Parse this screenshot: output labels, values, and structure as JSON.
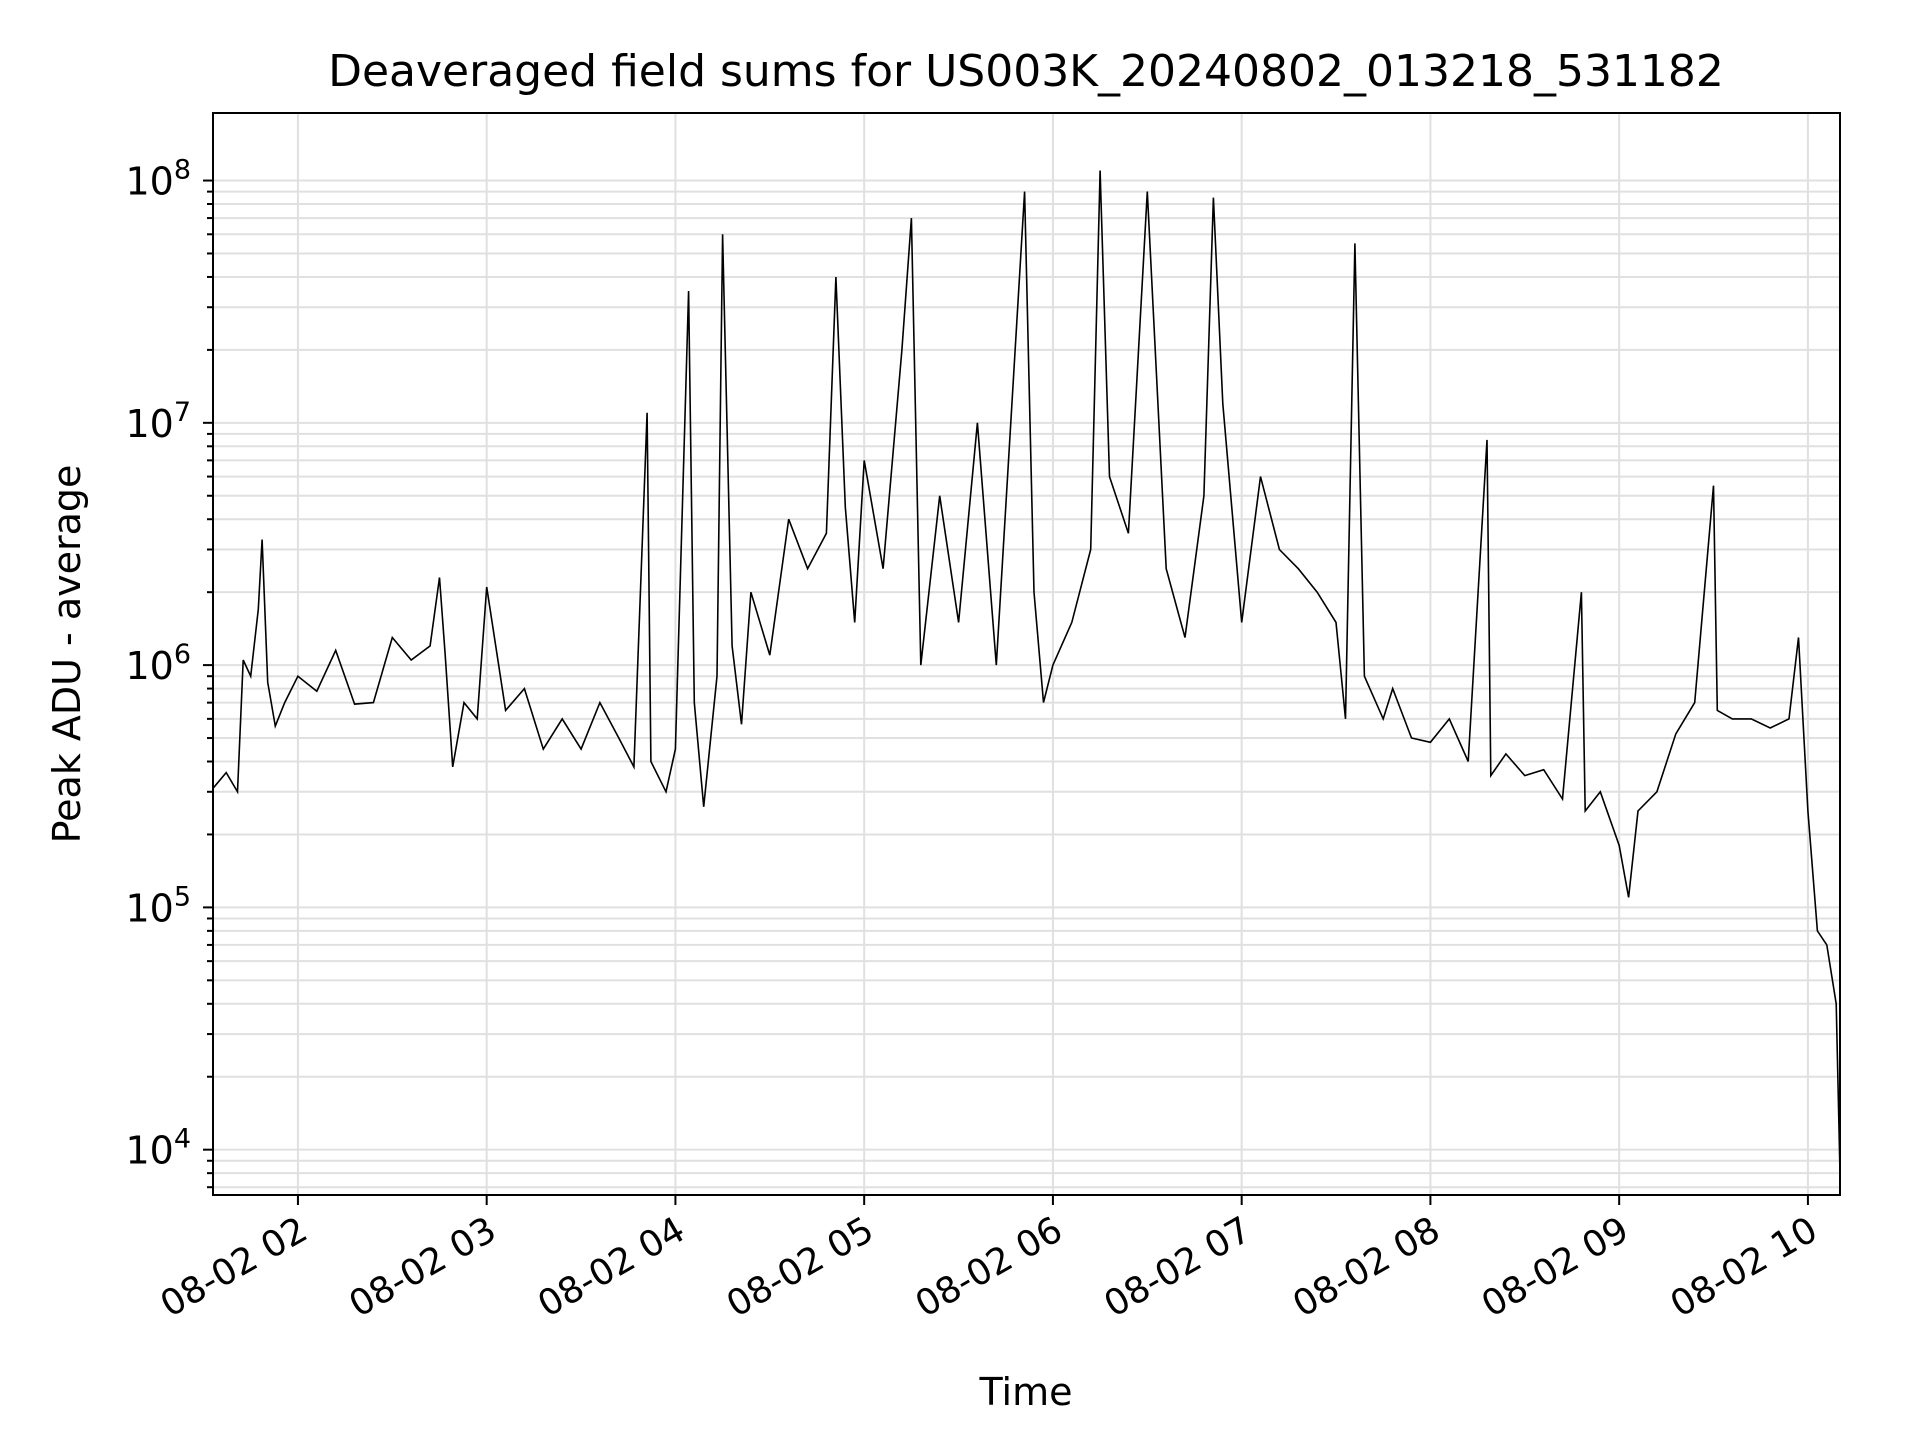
{
  "chart_data": {
    "type": "line",
    "title": "Deaveraged field sums for US003K_20240802_013218_531182",
    "xlabel": "Time",
    "ylabel": "Peak ADU - average",
    "x_unit": "hours",
    "xlim": [
      1.55,
      10.17
    ],
    "ylim": [
      6500,
      190000000
    ],
    "yscale": "log",
    "grid": true,
    "line_color": "#000000",
    "grid_color": "#e0e0e0",
    "xticks": [
      {
        "value": 2,
        "label": "08-02 02"
      },
      {
        "value": 3,
        "label": "08-02 03"
      },
      {
        "value": 4,
        "label": "08-02 04"
      },
      {
        "value": 5,
        "label": "08-02 05"
      },
      {
        "value": 6,
        "label": "08-02 06"
      },
      {
        "value": 7,
        "label": "08-02 07"
      },
      {
        "value": 8,
        "label": "08-02 08"
      },
      {
        "value": 9,
        "label": "08-02 09"
      },
      {
        "value": 10,
        "label": "08-02 10"
      }
    ],
    "yticks": [
      {
        "value": 10000,
        "base": "10",
        "exp": "4"
      },
      {
        "value": 100000,
        "base": "10",
        "exp": "5"
      },
      {
        "value": 1000000,
        "base": "10",
        "exp": "6"
      },
      {
        "value": 10000000,
        "base": "10",
        "exp": "7"
      },
      {
        "value": 100000000,
        "base": "10",
        "exp": "8"
      }
    ],
    "series": [
      {
        "values": [
          [
            1.55,
            310000
          ],
          [
            1.62,
            360000
          ],
          [
            1.68,
            300000
          ],
          [
            1.71,
            1050000
          ],
          [
            1.75,
            900000
          ],
          [
            1.79,
            1700000
          ],
          [
            1.81,
            3300000
          ],
          [
            1.84,
            850000
          ],
          [
            1.88,
            560000
          ],
          [
            1.93,
            700000
          ],
          [
            2.0,
            900000
          ],
          [
            2.1,
            780000
          ],
          [
            2.2,
            1150000
          ],
          [
            2.3,
            690000
          ],
          [
            2.4,
            700000
          ],
          [
            2.5,
            1300000
          ],
          [
            2.6,
            1050000
          ],
          [
            2.7,
            1200000
          ],
          [
            2.75,
            2300000
          ],
          [
            2.78,
            1100000
          ],
          [
            2.82,
            380000
          ],
          [
            2.88,
            700000
          ],
          [
            2.95,
            600000
          ],
          [
            3.0,
            2100000
          ],
          [
            3.1,
            650000
          ],
          [
            3.2,
            800000
          ],
          [
            3.3,
            450000
          ],
          [
            3.4,
            600000
          ],
          [
            3.5,
            450000
          ],
          [
            3.6,
            700000
          ],
          [
            3.7,
            500000
          ],
          [
            3.78,
            380000
          ],
          [
            3.85,
            11000000
          ],
          [
            3.87,
            400000
          ],
          [
            3.95,
            300000
          ],
          [
            4.0,
            450000
          ],
          [
            4.07,
            35000000
          ],
          [
            4.1,
            700000
          ],
          [
            4.15,
            260000
          ],
          [
            4.22,
            900000
          ],
          [
            4.25,
            60000000
          ],
          [
            4.3,
            1200000
          ],
          [
            4.35,
            570000
          ],
          [
            4.4,
            2000000
          ],
          [
            4.5,
            1100000
          ],
          [
            4.6,
            4000000
          ],
          [
            4.7,
            2500000
          ],
          [
            4.8,
            3500000
          ],
          [
            4.85,
            40000000
          ],
          [
            4.9,
            4500000
          ],
          [
            4.95,
            1500000
          ],
          [
            5.0,
            7000000
          ],
          [
            5.1,
            2500000
          ],
          [
            5.2,
            20000000
          ],
          [
            5.25,
            70000000
          ],
          [
            5.3,
            1000000
          ],
          [
            5.4,
            5000000
          ],
          [
            5.5,
            1500000
          ],
          [
            5.6,
            10000000
          ],
          [
            5.7,
            1000000
          ],
          [
            5.85,
            90000000
          ],
          [
            5.9,
            2000000
          ],
          [
            5.95,
            700000
          ],
          [
            6.0,
            1000000
          ],
          [
            6.1,
            1500000
          ],
          [
            6.2,
            3000000
          ],
          [
            6.25,
            110000000
          ],
          [
            6.3,
            6000000
          ],
          [
            6.4,
            3500000
          ],
          [
            6.5,
            90000000
          ],
          [
            6.6,
            2500000
          ],
          [
            6.7,
            1300000
          ],
          [
            6.8,
            5000000
          ],
          [
            6.85,
            85000000
          ],
          [
            6.9,
            12000000
          ],
          [
            7.0,
            1500000
          ],
          [
            7.1,
            6000000
          ],
          [
            7.2,
            3000000
          ],
          [
            7.3,
            2500000
          ],
          [
            7.4,
            2000000
          ],
          [
            7.5,
            1500000
          ],
          [
            7.55,
            600000
          ],
          [
            7.6,
            55000000
          ],
          [
            7.65,
            900000
          ],
          [
            7.75,
            600000
          ],
          [
            7.8,
            800000
          ],
          [
            7.9,
            500000
          ],
          [
            8.0,
            480000
          ],
          [
            8.1,
            600000
          ],
          [
            8.2,
            400000
          ],
          [
            8.3,
            8500000
          ],
          [
            8.32,
            350000
          ],
          [
            8.4,
            430000
          ],
          [
            8.5,
            350000
          ],
          [
            8.6,
            370000
          ],
          [
            8.7,
            280000
          ],
          [
            8.8,
            2000000
          ],
          [
            8.82,
            250000
          ],
          [
            8.9,
            300000
          ],
          [
            9.0,
            180000
          ],
          [
            9.05,
            110000
          ],
          [
            9.1,
            250000
          ],
          [
            9.2,
            300000
          ],
          [
            9.3,
            520000
          ],
          [
            9.4,
            700000
          ],
          [
            9.5,
            5500000
          ],
          [
            9.52,
            650000
          ],
          [
            9.6,
            600000
          ],
          [
            9.7,
            600000
          ],
          [
            9.8,
            550000
          ],
          [
            9.9,
            600000
          ],
          [
            9.95,
            1300000
          ],
          [
            10.0,
            250000
          ],
          [
            10.05,
            80000
          ],
          [
            10.1,
            70000
          ],
          [
            10.15,
            40000
          ],
          [
            10.17,
            8000
          ]
        ]
      }
    ]
  }
}
